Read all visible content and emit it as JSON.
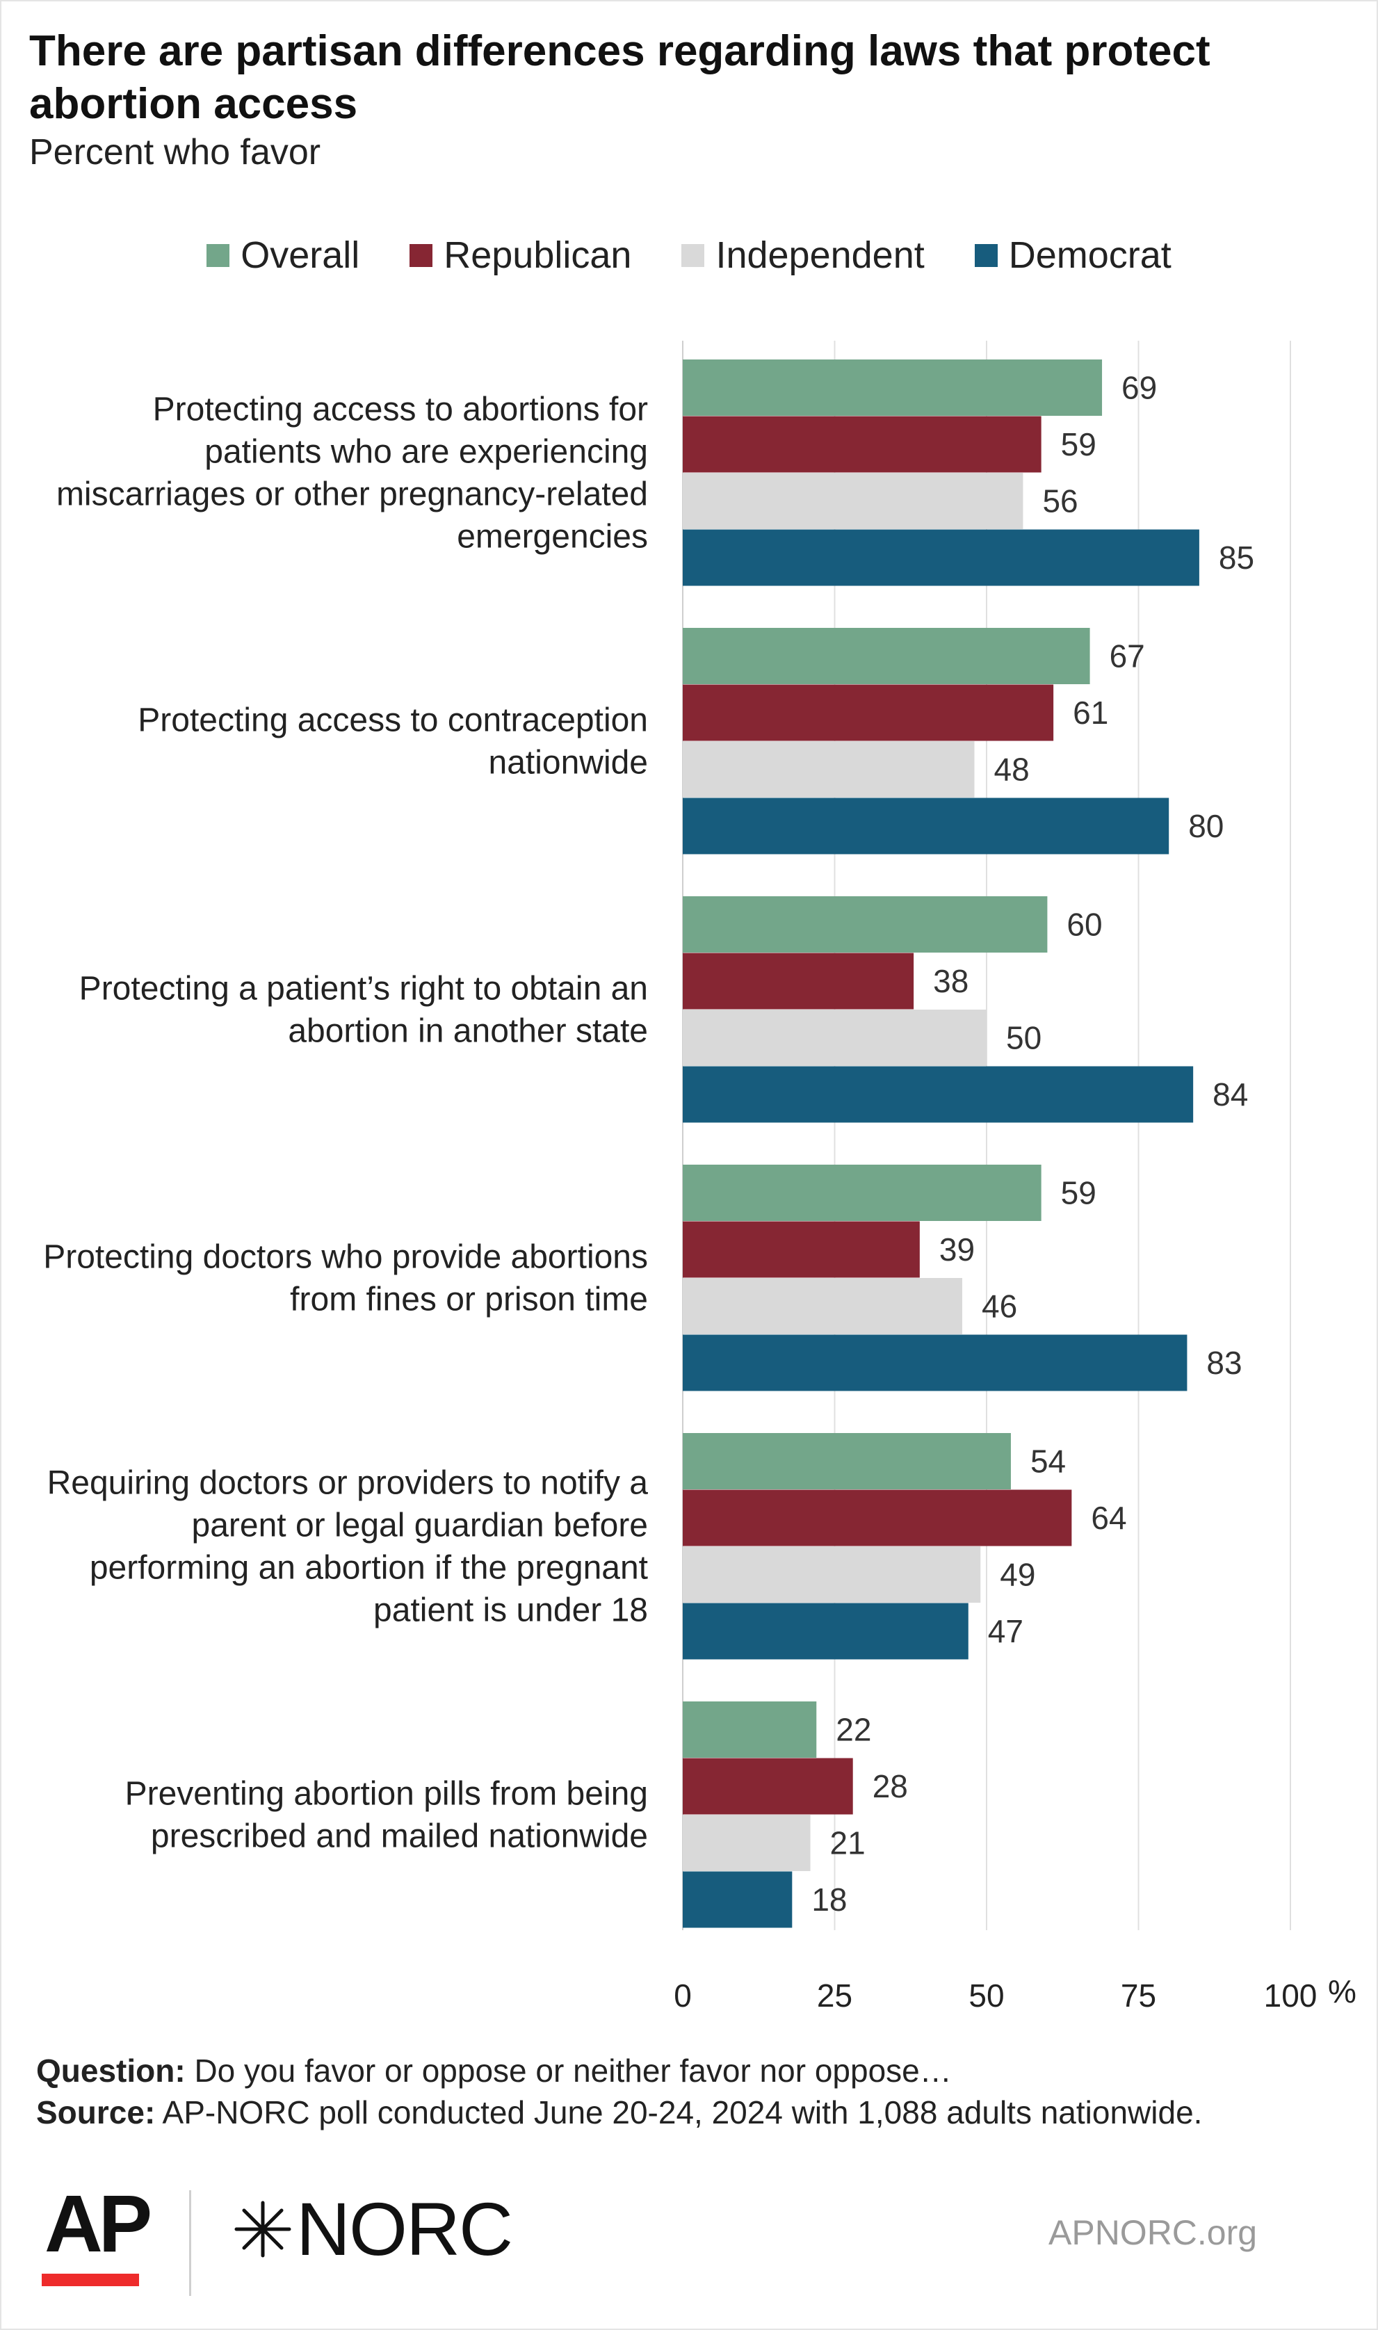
{
  "header": {
    "title": "There are partisan differences regarding laws that protect abortion access",
    "subtitle": "Percent who favor"
  },
  "chart_data": {
    "type": "bar",
    "orientation": "horizontal",
    "title": "There are partisan differences regarding laws that protect abortion access",
    "subtitle": "Percent who favor",
    "categories": [
      "Protecting access to abortions for patients who are experiencing miscarriages or other pregnancy-related emergencies",
      "Protecting access to contraception nationwide",
      "Protecting a patient’s right to obtain an abortion in another state",
      "Protecting doctors who provide abortions from fines or prison time",
      "Requiring doctors or providers to notify a parent or legal guardian before performing an abortion if the pregnant patient is under 18",
      "Preventing abortion pills from being prescribed and mailed nationwide"
    ],
    "category_lines": [
      [
        "Protecting access to abortions for",
        "patients who are experiencing",
        "miscarriages or other pregnancy-related",
        "emergencies"
      ],
      [
        "Protecting access to contraception",
        "nationwide"
      ],
      [
        "Protecting a patient’s right to obtain an",
        "abortion in another state"
      ],
      [
        "Protecting doctors who provide abortions",
        "from fines or prison time"
      ],
      [
        "Requiring doctors or providers to notify a",
        "parent or legal guardian before",
        "performing an abortion if the pregnant",
        "patient is under 18"
      ],
      [
        "Preventing abortion pills from being",
        "prescribed and mailed nationwide"
      ]
    ],
    "series": [
      {
        "name": "Overall",
        "color": "#73a68a",
        "values": [
          69,
          67,
          60,
          59,
          54,
          22
        ]
      },
      {
        "name": "Republican",
        "color": "#862633",
        "values": [
          59,
          61,
          38,
          39,
          64,
          28
        ]
      },
      {
        "name": "Independent",
        "color": "#d9d9d9",
        "values": [
          56,
          48,
          50,
          46,
          49,
          21
        ]
      },
      {
        "name": "Democrat",
        "color": "#175c7d",
        "values": [
          85,
          80,
          84,
          83,
          47,
          18
        ]
      }
    ],
    "xlim": [
      0,
      100
    ],
    "xticks": [
      "0",
      "25",
      "50",
      "75",
      "100"
    ],
    "xtick_values": [
      0,
      25,
      50,
      75,
      100
    ],
    "x_unit": "%",
    "grid": true,
    "legend_position": "top"
  },
  "footer": {
    "question_label": "Question:",
    "question_text": "Do you favor or oppose or neither favor nor oppose…",
    "source_label": "Source:",
    "source_text": "AP-NORC poll conducted June 20-24, 2024 with 1,088 adults nationwide.",
    "ap_logo": "AP",
    "norc_logo": "NORC",
    "website": "APNORC.org"
  }
}
